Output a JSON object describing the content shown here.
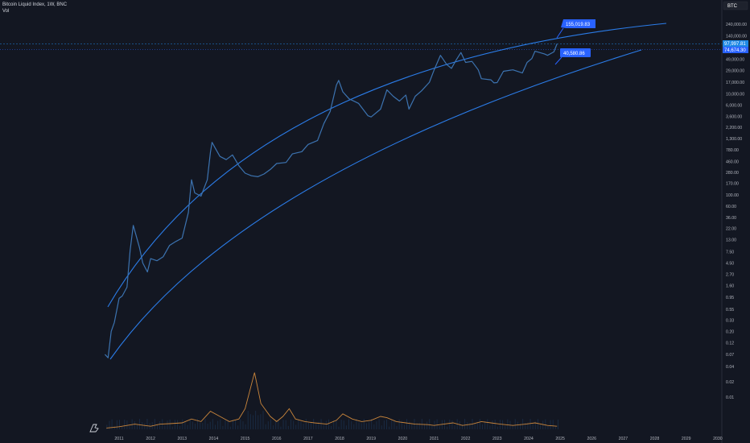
{
  "header": {
    "title": "Bitcoin Liquid Index, 1W, BNC",
    "volume_label": "Vol"
  },
  "symbol_badge": "BTC",
  "chart_data": {
    "type": "line",
    "scale": "log",
    "grid": false,
    "y_ticks": [
      "240,000.00",
      "140,000.00",
      "49,000.00",
      "29,000.00",
      "17,000.00",
      "10,000.00",
      "6,000.00",
      "3,600.00",
      "2,200.00",
      "1,300.00",
      "780.00",
      "460.00",
      "280.00",
      "170.00",
      "100.00",
      "60.00",
      "36.00",
      "22.00",
      "13.00",
      "7.50",
      "4.50",
      "2.70",
      "1.60",
      "0.95",
      "0.55",
      "0.33",
      "0.20",
      "0.12",
      "0.07",
      "0.04",
      "0.02",
      "0.01"
    ],
    "y_tick_values": [
      240000,
      140000,
      49000,
      29000,
      17000,
      10000,
      6000,
      3600,
      2200,
      1300,
      780,
      460,
      280,
      170,
      100,
      60,
      36,
      22,
      13,
      7.5,
      4.5,
      2.7,
      1.6,
      0.95,
      0.55,
      0.33,
      0.2,
      0.12,
      0.07,
      0.04,
      0.02,
      0.01
    ],
    "x_ticks": [
      "2011",
      "2012",
      "2013",
      "2014",
      "2015",
      "2016",
      "2017",
      "2018",
      "2019",
      "2020",
      "2021",
      "2022",
      "2023",
      "2024",
      "2025",
      "2026",
      "2027",
      "2028",
      "2029",
      "2030"
    ],
    "x_tick_years": [
      2011,
      2012,
      2013,
      2014,
      2015,
      2016,
      2017,
      2018,
      2019,
      2020,
      2021,
      2022,
      2023,
      2024,
      2025,
      2026,
      2027,
      2028,
      2029,
      2030
    ],
    "price_series": {
      "points": [
        [
          2010.55,
          0.07
        ],
        [
          2010.65,
          0.06
        ],
        [
          2010.75,
          0.2
        ],
        [
          2010.85,
          0.3
        ],
        [
          2011.0,
          0.9
        ],
        [
          2011.1,
          1.0
        ],
        [
          2011.25,
          1.5
        ],
        [
          2011.35,
          8.0
        ],
        [
          2011.45,
          25.0
        ],
        [
          2011.55,
          15.0
        ],
        [
          2011.65,
          9.0
        ],
        [
          2011.75,
          4.5
        ],
        [
          2011.9,
          3.0
        ],
        [
          2012.0,
          5.5
        ],
        [
          2012.2,
          5.0
        ],
        [
          2012.4,
          6.0
        ],
        [
          2012.6,
          10.0
        ],
        [
          2012.8,
          12.0
        ],
        [
          2013.0,
          14.0
        ],
        [
          2013.2,
          45.0
        ],
        [
          2013.3,
          200.0
        ],
        [
          2013.4,
          110.0
        ],
        [
          2013.6,
          95.0
        ],
        [
          2013.8,
          200.0
        ],
        [
          2013.9,
          700.0
        ],
        [
          2013.95,
          1100.0
        ],
        [
          2014.05,
          850.0
        ],
        [
          2014.2,
          580.0
        ],
        [
          2014.4,
          500.0
        ],
        [
          2014.6,
          620.0
        ],
        [
          2014.8,
          380.0
        ],
        [
          2015.0,
          270.0
        ],
        [
          2015.2,
          240.0
        ],
        [
          2015.4,
          230.0
        ],
        [
          2015.6,
          260.0
        ],
        [
          2015.8,
          320.0
        ],
        [
          2016.0,
          420.0
        ],
        [
          2016.3,
          440.0
        ],
        [
          2016.5,
          650.0
        ],
        [
          2016.8,
          720.0
        ],
        [
          2017.0,
          1000.0
        ],
        [
          2017.3,
          1200.0
        ],
        [
          2017.5,
          2600.0
        ],
        [
          2017.7,
          4500.0
        ],
        [
          2017.9,
          15000.0
        ],
        [
          2017.97,
          18500.0
        ],
        [
          2018.1,
          11000.0
        ],
        [
          2018.3,
          8000.0
        ],
        [
          2018.6,
          6500.0
        ],
        [
          2018.9,
          3700.0
        ],
        [
          2019.0,
          3500.0
        ],
        [
          2019.3,
          5000.0
        ],
        [
          2019.5,
          12000.0
        ],
        [
          2019.7,
          9000.0
        ],
        [
          2019.9,
          7200.0
        ],
        [
          2020.1,
          9500.0
        ],
        [
          2020.2,
          5000.0
        ],
        [
          2020.4,
          9000.0
        ],
        [
          2020.6,
          11500.0
        ],
        [
          2020.85,
          17000.0
        ],
        [
          2021.0,
          30000.0
        ],
        [
          2021.2,
          58000.0
        ],
        [
          2021.4,
          38000.0
        ],
        [
          2021.55,
          32000.0
        ],
        [
          2021.7,
          47000.0
        ],
        [
          2021.85,
          66000.0
        ],
        [
          2022.0,
          42000.0
        ],
        [
          2022.2,
          44000.0
        ],
        [
          2022.4,
          30000.0
        ],
        [
          2022.5,
          20000.0
        ],
        [
          2022.8,
          19000.0
        ],
        [
          2022.9,
          16500.0
        ],
        [
          2023.0,
          16800.0
        ],
        [
          2023.2,
          28000.0
        ],
        [
          2023.5,
          30000.0
        ],
        [
          2023.8,
          26000.0
        ],
        [
          2023.95,
          42000.0
        ],
        [
          2024.1,
          50000.0
        ],
        [
          2024.2,
          70000.0
        ],
        [
          2024.5,
          62000.0
        ],
        [
          2024.6,
          58000.0
        ],
        [
          2024.8,
          68000.0
        ],
        [
          2024.9,
          97997.81
        ]
      ]
    },
    "upper_band": {
      "label": "155,019.83",
      "value": 155019.83
    },
    "lower_band": {
      "label": "40,580.86",
      "value": 40580.86
    },
    "last_price_label": "97,997.81",
    "band_price_label": "74,674.30",
    "volume_series": {
      "points": [
        [
          2010.6,
          0.05
        ],
        [
          2011.0,
          0.1
        ],
        [
          2011.5,
          0.2
        ],
        [
          2011.8,
          0.15
        ],
        [
          2012.0,
          0.12
        ],
        [
          2012.3,
          0.2
        ],
        [
          2012.6,
          0.22
        ],
        [
          2013.0,
          0.25
        ],
        [
          2013.3,
          0.4
        ],
        [
          2013.6,
          0.3
        ],
        [
          2013.9,
          0.7
        ],
        [
          2014.2,
          0.5
        ],
        [
          2014.5,
          0.3
        ],
        [
          2014.8,
          0.4
        ],
        [
          2015.0,
          0.8
        ],
        [
          2015.3,
          2.2
        ],
        [
          2015.5,
          1.0
        ],
        [
          2015.8,
          0.5
        ],
        [
          2016.0,
          0.3
        ],
        [
          2016.2,
          0.5
        ],
        [
          2016.4,
          0.8
        ],
        [
          2016.6,
          0.4
        ],
        [
          2016.9,
          0.3
        ],
        [
          2017.2,
          0.25
        ],
        [
          2017.6,
          0.2
        ],
        [
          2017.9,
          0.35
        ],
        [
          2018.1,
          0.6
        ],
        [
          2018.4,
          0.4
        ],
        [
          2018.7,
          0.3
        ],
        [
          2019.0,
          0.35
        ],
        [
          2019.3,
          0.5
        ],
        [
          2019.5,
          0.45
        ],
        [
          2019.8,
          0.3
        ],
        [
          2020.1,
          0.25
        ],
        [
          2020.4,
          0.2
        ],
        [
          2020.8,
          0.18
        ],
        [
          2021.0,
          0.15
        ],
        [
          2021.3,
          0.2
        ],
        [
          2021.6,
          0.25
        ],
        [
          2021.9,
          0.15
        ],
        [
          2022.2,
          0.2
        ],
        [
          2022.5,
          0.3
        ],
        [
          2022.8,
          0.25
        ],
        [
          2023.1,
          0.2
        ],
        [
          2023.5,
          0.15
        ],
        [
          2023.9,
          0.2
        ],
        [
          2024.2,
          0.25
        ],
        [
          2024.6,
          0.15
        ],
        [
          2024.9,
          0.12
        ]
      ]
    },
    "colors": {
      "background": "#131722",
      "price": "#3c73b0",
      "band": "#2b7ce8",
      "volume_line": "#c9853b",
      "volume_bars": "#1f3a5c",
      "tag_bg": "#2962ff",
      "tag_bg2": "#1e88e5",
      "axis_text": "#b2b5be"
    }
  }
}
